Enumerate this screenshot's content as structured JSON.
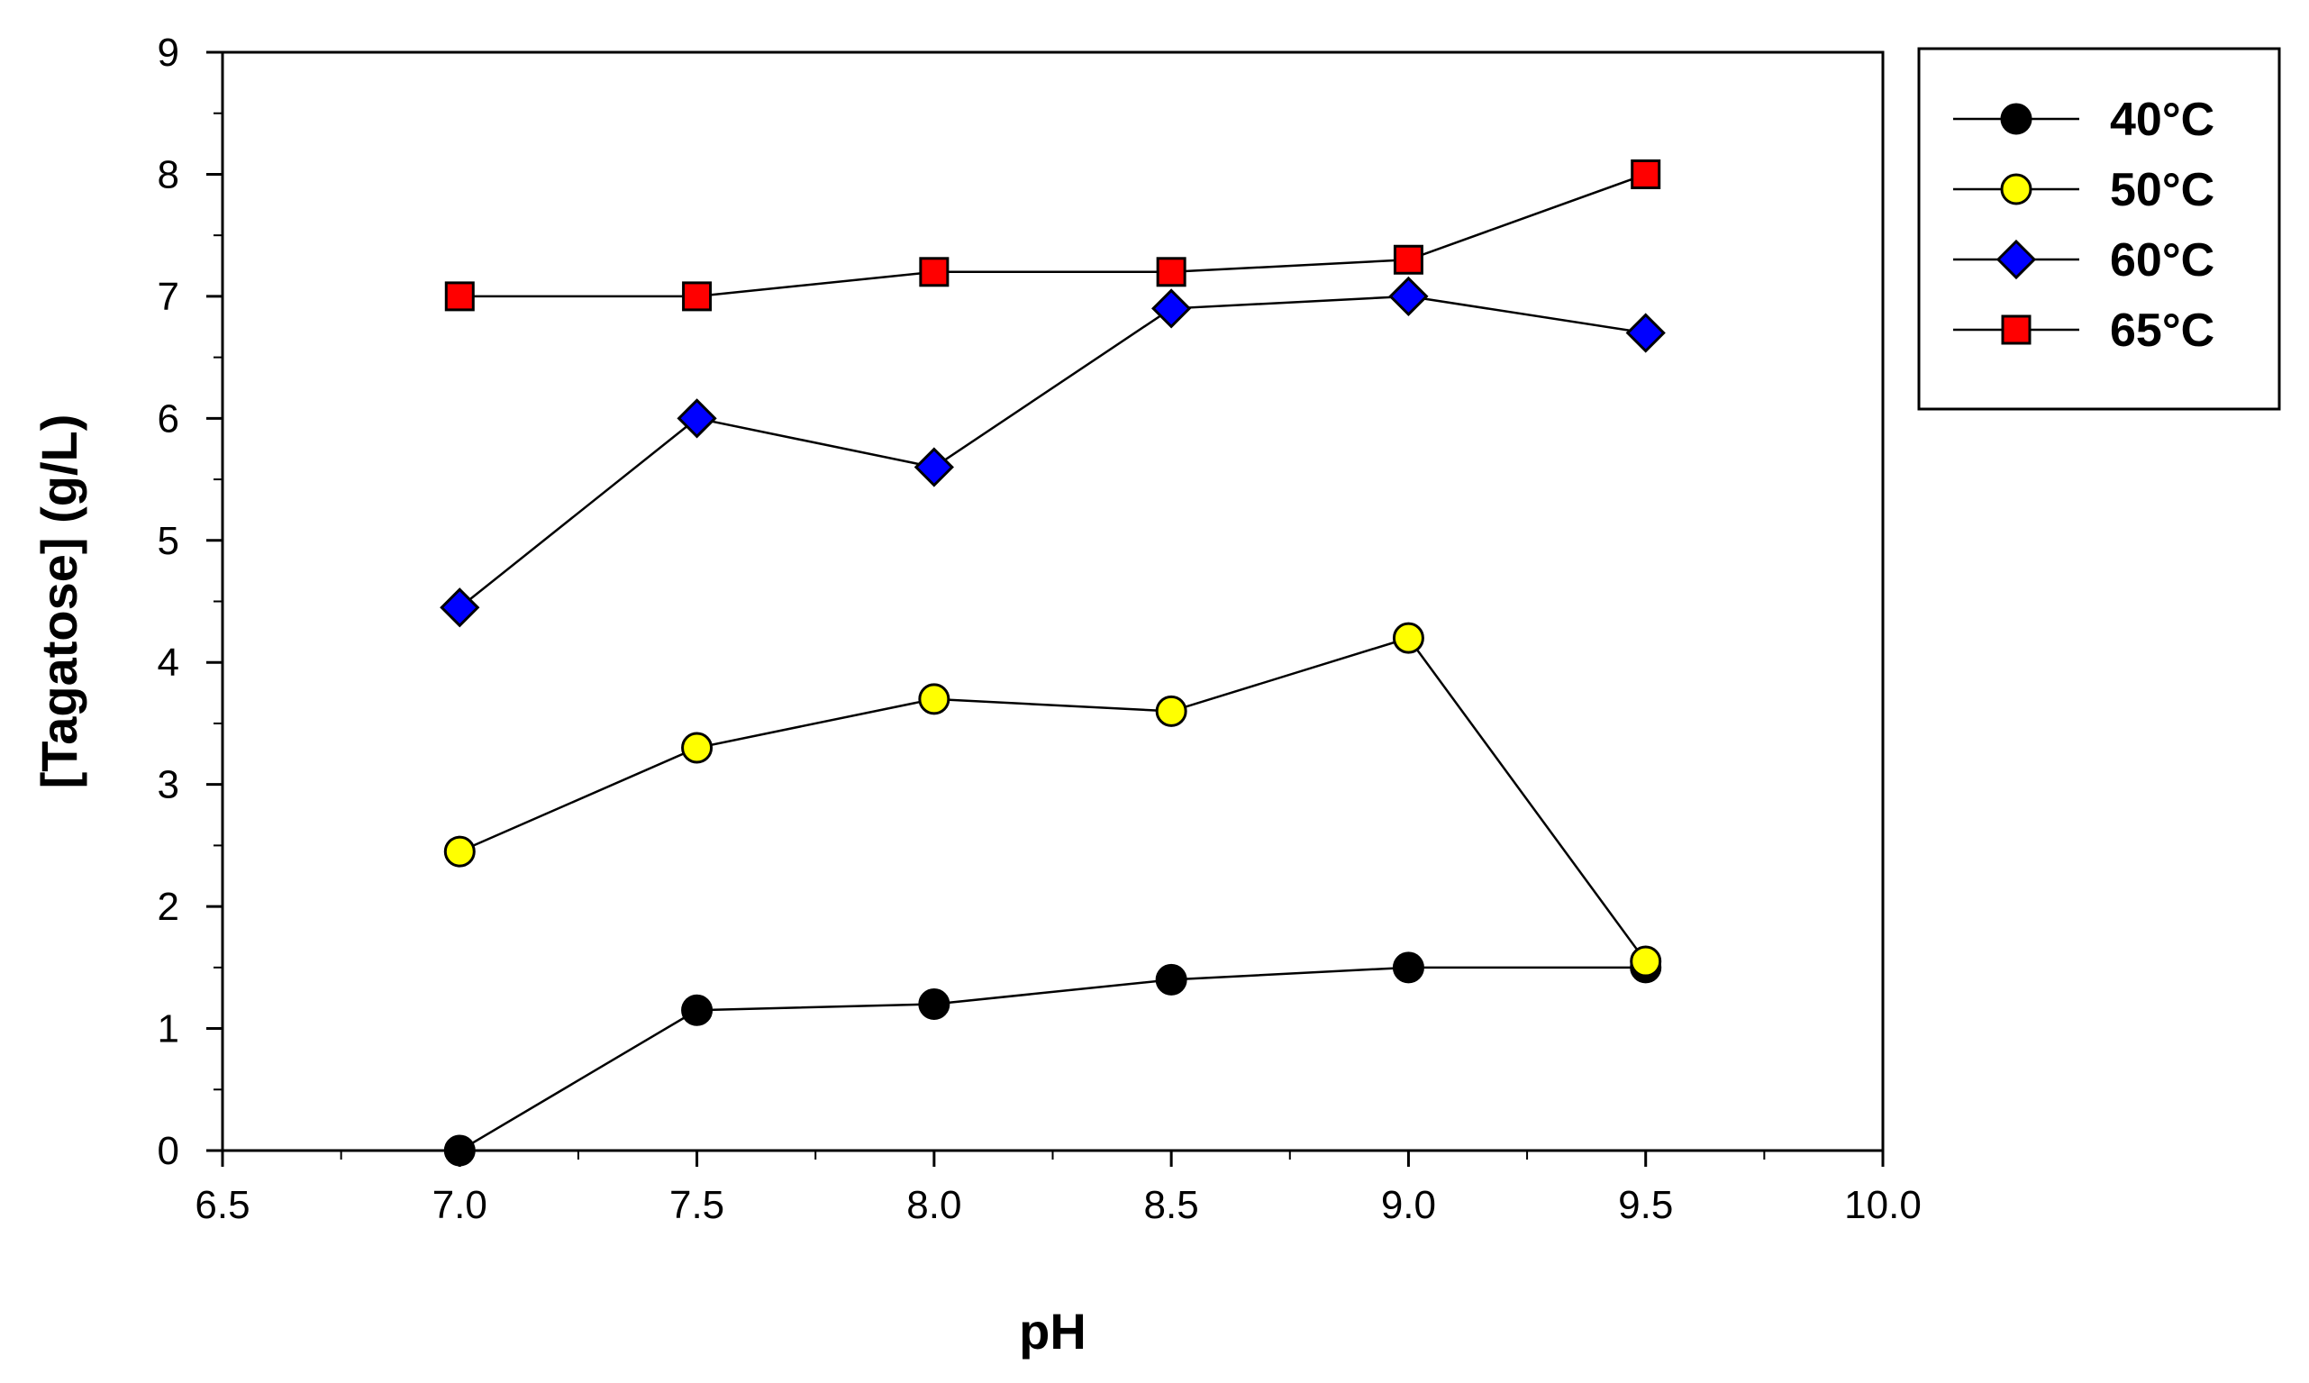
{
  "chart_data": {
    "type": "line",
    "title": "",
    "xlabel": "pH",
    "ylabel": "[Tagatose] (g/L)",
    "xlim": [
      6.5,
      10.0
    ],
    "ylim": [
      0,
      9
    ],
    "xticks": [
      6.5,
      7.0,
      7.5,
      8.0,
      8.5,
      9.0,
      9.5,
      10.0
    ],
    "xtick_labels": [
      "6.5",
      "7.0",
      "7.5",
      "8.0",
      "8.5",
      "9.0",
      "9.5",
      "10.0"
    ],
    "yticks": [
      0,
      1,
      2,
      3,
      4,
      5,
      6,
      7,
      8,
      9
    ],
    "ytick_labels": [
      "0",
      "1",
      "2",
      "3",
      "4",
      "5",
      "6",
      "7",
      "8",
      "9"
    ],
    "grid": false,
    "legend_position": "top-right, outside plot",
    "x": [
      7.0,
      7.5,
      8.0,
      8.5,
      9.0,
      9.5
    ],
    "series": [
      {
        "name": "40°C",
        "marker": "circle",
        "color": "#000000",
        "values": [
          0.0,
          1.15,
          1.2,
          1.4,
          1.5,
          1.5
        ]
      },
      {
        "name": "50°C",
        "marker": "circle",
        "color": "#ffff00",
        "values": [
          2.45,
          3.3,
          3.7,
          3.6,
          4.2,
          1.55
        ]
      },
      {
        "name": "60°C",
        "marker": "diamond",
        "color": "#0000ff",
        "values": [
          4.45,
          6.0,
          5.6,
          6.9,
          7.0,
          6.7
        ]
      },
      {
        "name": "65°C",
        "marker": "square",
        "color": "#ff0000",
        "values": [
          7.0,
          7.0,
          7.2,
          7.2,
          7.3,
          8.0
        ]
      }
    ]
  }
}
